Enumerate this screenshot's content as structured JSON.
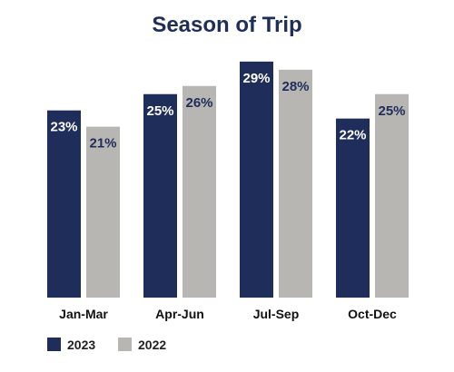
{
  "chart_data": {
    "type": "bar",
    "title": "Season of Trip",
    "categories": [
      "Jan-Mar",
      "Apr-Jun",
      "Jul-Sep",
      "Oct-Dec"
    ],
    "series": [
      {
        "name": "2023",
        "values": [
          23,
          25,
          29,
          22
        ],
        "labels": [
          "23%",
          "25%",
          "29%",
          "22%"
        ],
        "color": "#1f2d5a"
      },
      {
        "name": "2022",
        "values": [
          21,
          26,
          28,
          25
        ],
        "labels": [
          "21%",
          "26%",
          "28%",
          "25%"
        ],
        "color": "#b8b6b3"
      }
    ],
    "value_unit": "%",
    "ylim": [
      0,
      30
    ],
    "grid": false,
    "legend_position": "bottom-left"
  }
}
